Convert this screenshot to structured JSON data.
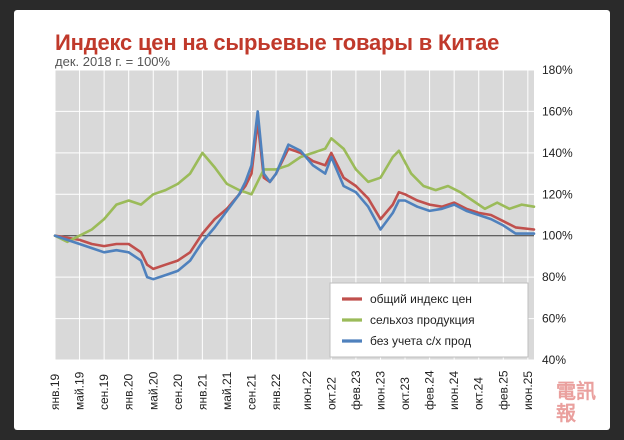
{
  "chart_data": {
    "type": "line",
    "title": "Индекс цен на сырьевые товары в Китае",
    "subtitle": "дек. 2018 г. = 100%",
    "xlabel": "",
    "ylabel": "",
    "ylim": [
      40,
      180
    ],
    "yticks": [
      "40%",
      "60%",
      "80%",
      "100%",
      "120%",
      "140%",
      "160%",
      "180%"
    ],
    "x_start": "2019-01",
    "x_end": "2025-07",
    "xticks": [
      {
        "month": "2019-01",
        "label": "янв.19"
      },
      {
        "month": "2019-05",
        "label": "май.19"
      },
      {
        "month": "2019-09",
        "label": "сен.19"
      },
      {
        "month": "2020-01",
        "label": "янв.20"
      },
      {
        "month": "2020-05",
        "label": "май.20"
      },
      {
        "month": "2020-09",
        "label": "сен.20"
      },
      {
        "month": "2021-01",
        "label": "янв.21"
      },
      {
        "month": "2021-05",
        "label": "май.21"
      },
      {
        "month": "2021-09",
        "label": "сен.21"
      },
      {
        "month": "2022-01",
        "label": "янв.22"
      },
      {
        "month": "2022-06",
        "label": "июн.22"
      },
      {
        "month": "2022-10",
        "label": "окт.22"
      },
      {
        "month": "2023-02",
        "label": "фев.23"
      },
      {
        "month": "2023-06",
        "label": "июн.23"
      },
      {
        "month": "2023-10",
        "label": "окт.23"
      },
      {
        "month": "2024-02",
        "label": "фев.24"
      },
      {
        "month": "2024-06",
        "label": "июн.24"
      },
      {
        "month": "2024-10",
        "label": "окт.24"
      },
      {
        "month": "2025-02",
        "label": "фев.25"
      },
      {
        "month": "2025-06",
        "label": "июн.25"
      }
    ],
    "reference_line": 100,
    "legend_position": "bottom-right",
    "grid": true,
    "series": [
      {
        "name": "общий индекс цен",
        "color": "#c0504d",
        "points": [
          [
            "2019-01",
            100
          ],
          [
            "2019-03",
            99
          ],
          [
            "2019-05",
            98
          ],
          [
            "2019-07",
            96
          ],
          [
            "2019-09",
            95
          ],
          [
            "2019-11",
            96
          ],
          [
            "2020-01",
            96
          ],
          [
            "2020-03",
            92
          ],
          [
            "2020-04",
            86
          ],
          [
            "2020-05",
            84
          ],
          [
            "2020-07",
            86
          ],
          [
            "2020-09",
            88
          ],
          [
            "2020-11",
            92
          ],
          [
            "2021-01",
            101
          ],
          [
            "2021-03",
            108
          ],
          [
            "2021-05",
            113
          ],
          [
            "2021-07",
            120
          ],
          [
            "2021-08",
            124
          ],
          [
            "2021-09",
            130
          ],
          [
            "2021-10",
            155
          ],
          [
            "2021-11",
            128
          ],
          [
            "2021-12",
            126
          ],
          [
            "2022-01",
            130
          ],
          [
            "2022-03",
            142
          ],
          [
            "2022-05",
            140
          ],
          [
            "2022-07",
            136
          ],
          [
            "2022-09",
            134
          ],
          [
            "2022-10",
            140
          ],
          [
            "2022-12",
            128
          ],
          [
            "2023-02",
            124
          ],
          [
            "2023-04",
            118
          ],
          [
            "2023-06",
            108
          ],
          [
            "2023-08",
            115
          ],
          [
            "2023-09",
            121
          ],
          [
            "2023-10",
            120
          ],
          [
            "2023-12",
            117
          ],
          [
            "2024-02",
            115
          ],
          [
            "2024-04",
            114
          ],
          [
            "2024-06",
            116
          ],
          [
            "2024-08",
            113
          ],
          [
            "2024-10",
            111
          ],
          [
            "2024-12",
            110
          ],
          [
            "2025-02",
            107
          ],
          [
            "2025-04",
            104
          ],
          [
            "2025-07",
            103
          ]
        ]
      },
      {
        "name": "сельхоз продукция",
        "color": "#9bbb59",
        "points": [
          [
            "2019-01",
            100
          ],
          [
            "2019-03",
            97
          ],
          [
            "2019-05",
            100
          ],
          [
            "2019-07",
            103
          ],
          [
            "2019-09",
            108
          ],
          [
            "2019-11",
            115
          ],
          [
            "2020-01",
            117
          ],
          [
            "2020-03",
            115
          ],
          [
            "2020-05",
            120
          ],
          [
            "2020-07",
            122
          ],
          [
            "2020-09",
            125
          ],
          [
            "2020-11",
            130
          ],
          [
            "2021-01",
            140
          ],
          [
            "2021-03",
            133
          ],
          [
            "2021-05",
            125
          ],
          [
            "2021-07",
            122
          ],
          [
            "2021-09",
            120
          ],
          [
            "2021-11",
            132
          ],
          [
            "2022-01",
            132
          ],
          [
            "2022-03",
            134
          ],
          [
            "2022-05",
            138
          ],
          [
            "2022-07",
            140
          ],
          [
            "2022-09",
            142
          ],
          [
            "2022-10",
            147
          ],
          [
            "2022-12",
            142
          ],
          [
            "2023-02",
            132
          ],
          [
            "2023-04",
            126
          ],
          [
            "2023-06",
            128
          ],
          [
            "2023-08",
            138
          ],
          [
            "2023-09",
            141
          ],
          [
            "2023-11",
            130
          ],
          [
            "2024-01",
            124
          ],
          [
            "2024-03",
            122
          ],
          [
            "2024-05",
            124
          ],
          [
            "2024-07",
            121
          ],
          [
            "2024-09",
            117
          ],
          [
            "2024-11",
            113
          ],
          [
            "2025-01",
            116
          ],
          [
            "2025-03",
            113
          ],
          [
            "2025-05",
            115
          ],
          [
            "2025-07",
            114
          ]
        ]
      },
      {
        "name": "без учета с/х прод",
        "color": "#4f81bd",
        "points": [
          [
            "2019-01",
            100
          ],
          [
            "2019-03",
            98
          ],
          [
            "2019-05",
            96
          ],
          [
            "2019-07",
            94
          ],
          [
            "2019-09",
            92
          ],
          [
            "2019-11",
            93
          ],
          [
            "2020-01",
            92
          ],
          [
            "2020-03",
            88
          ],
          [
            "2020-04",
            80
          ],
          [
            "2020-05",
            79
          ],
          [
            "2020-07",
            81
          ],
          [
            "2020-09",
            83
          ],
          [
            "2020-11",
            88
          ],
          [
            "2021-01",
            97
          ],
          [
            "2021-03",
            104
          ],
          [
            "2021-05",
            112
          ],
          [
            "2021-07",
            120
          ],
          [
            "2021-08",
            126
          ],
          [
            "2021-09",
            134
          ],
          [
            "2021-10",
            160
          ],
          [
            "2021-11",
            130
          ],
          [
            "2021-12",
            126
          ],
          [
            "2022-01",
            130
          ],
          [
            "2022-03",
            144
          ],
          [
            "2022-05",
            141
          ],
          [
            "2022-07",
            134
          ],
          [
            "2022-09",
            130
          ],
          [
            "2022-10",
            138
          ],
          [
            "2022-12",
            124
          ],
          [
            "2023-02",
            121
          ],
          [
            "2023-04",
            114
          ],
          [
            "2023-06",
            103
          ],
          [
            "2023-08",
            111
          ],
          [
            "2023-09",
            117
          ],
          [
            "2023-10",
            117
          ],
          [
            "2023-12",
            114
          ],
          [
            "2024-02",
            112
          ],
          [
            "2024-04",
            113
          ],
          [
            "2024-06",
            115
          ],
          [
            "2024-08",
            112
          ],
          [
            "2024-10",
            110
          ],
          [
            "2024-12",
            108
          ],
          [
            "2025-02",
            105
          ],
          [
            "2025-04",
            101
          ],
          [
            "2025-07",
            101
          ]
        ]
      }
    ]
  },
  "watermark": "電訊報"
}
